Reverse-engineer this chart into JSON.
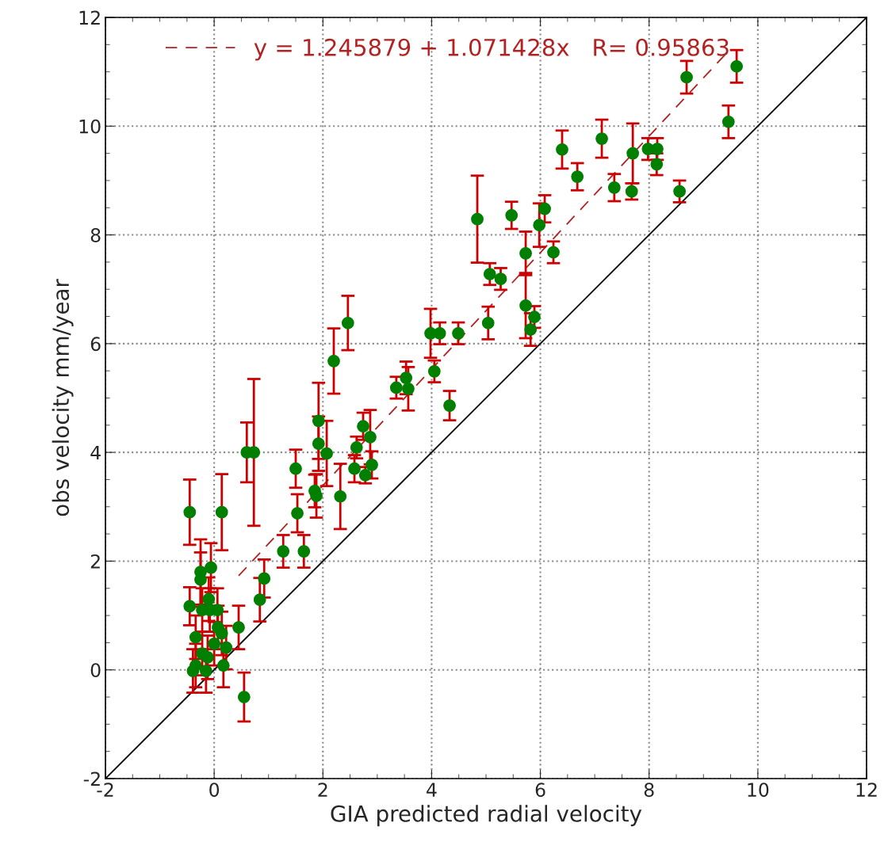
{
  "chart_data": {
    "type": "scatter",
    "xlabel": "GIA predicted radial velocity",
    "ylabel": "obs velocity mm/year",
    "xlim": [
      -2,
      12
    ],
    "ylim": [
      -2,
      12
    ],
    "xticks": [
      -2,
      0,
      2,
      4,
      6,
      8,
      10,
      12
    ],
    "yticks": [
      -2,
      0,
      2,
      4,
      6,
      8,
      10,
      12
    ],
    "grid": true,
    "legend": "top",
    "series": [
      {
        "type": "line",
        "color": "#000000",
        "x": [
          -2,
          12
        ],
        "values": [
          -2,
          12
        ],
        "line_style": "solid",
        "marker": "none"
      },
      {
        "color": "#007f00",
        "marker": "circle",
        "x": [
          9.61,
          8.69,
          9.46,
          8.56,
          7.98,
          8.15,
          8.14,
          7.7,
          7.68,
          7.36,
          7.13,
          6.68,
          6.4,
          6.24,
          6.08,
          5.98,
          5.73,
          5.73,
          5.89,
          5.82,
          4.84,
          5.47,
          5.07,
          5.27,
          5.04,
          4.49,
          4.15,
          3.98,
          4.05,
          4.33,
          3.53,
          3.35,
          3.57,
          2.46,
          2.2,
          1.92,
          1.92,
          2.07,
          1.85,
          1.88,
          2.32,
          1.5,
          1.53,
          1.27,
          1.65,
          0.92,
          0.84,
          0.45,
          0.6,
          0.73,
          0.14,
          2.62,
          2.74,
          2.87,
          2.58,
          2.78,
          2.9,
          -0.45,
          -0.45,
          -0.25,
          -0.06,
          -0.25,
          -0.1,
          -0.22,
          -0.08,
          0.06,
          0.07,
          0.14,
          0.22,
          -0.34,
          0.0,
          -0.12,
          -0.22,
          -0.34,
          -0.39,
          -0.15,
          0.17,
          0.55
        ],
        "values": [
          11.1,
          10.9,
          10.08,
          8.8,
          9.58,
          9.58,
          9.3,
          9.5,
          8.8,
          8.87,
          9.77,
          9.07,
          9.57,
          7.68,
          8.48,
          8.18,
          7.66,
          6.7,
          6.49,
          6.26,
          8.29,
          8.36,
          7.28,
          7.19,
          6.38,
          6.19,
          6.19,
          6.19,
          5.49,
          4.86,
          5.37,
          5.19,
          5.17,
          6.38,
          5.68,
          4.58,
          4.16,
          3.98,
          3.29,
          3.2,
          3.19,
          3.7,
          2.88,
          2.18,
          2.18,
          1.68,
          1.29,
          0.78,
          4.0,
          4.0,
          2.9,
          4.09,
          4.48,
          4.28,
          3.7,
          3.58,
          3.77,
          2.9,
          1.17,
          1.8,
          1.88,
          1.66,
          1.3,
          1.1,
          1.1,
          1.1,
          0.78,
          0.67,
          0.41,
          0.6,
          0.48,
          0.23,
          0.3,
          0.08,
          -0.02,
          -0.02,
          0.08,
          -0.5
        ],
        "errors": [
          0.3,
          0.3,
          0.3,
          0.2,
          0.2,
          0.2,
          0.2,
          0.55,
          0.15,
          0.25,
          0.35,
          0.25,
          0.35,
          0.2,
          0.25,
          0.4,
          0.4,
          0.6,
          0.2,
          0.3,
          0.8,
          0.25,
          0.2,
          0.2,
          0.3,
          0.2,
          0.2,
          0.45,
          0.2,
          0.27,
          0.3,
          0.2,
          0.4,
          0.5,
          0.6,
          0.7,
          0.5,
          0.6,
          0.3,
          0.4,
          0.6,
          0.35,
          0.35,
          0.3,
          0.3,
          0.35,
          0.4,
          0.4,
          0.55,
          1.35,
          0.7,
          0.2,
          0.25,
          0.5,
          0.25,
          0.15,
          0.25,
          0.6,
          0.35,
          0.6,
          0.45,
          0.5,
          0.4,
          0.4,
          0.4,
          0.4,
          0.4,
          0.4,
          0.4,
          0.4,
          0.4,
          0.4,
          0.4,
          0.4,
          0.4,
          0.4,
          0.4,
          0.45
        ]
      },
      {
        "type": "line",
        "name": "y = 1.245879 + 1.071428x   R= 0.95863",
        "color": "#b22222",
        "x": [
          0.45,
          9.45
        ],
        "values": [
          1.73,
          11.37
        ],
        "line_style": "dashed",
        "marker": "none"
      }
    ]
  }
}
